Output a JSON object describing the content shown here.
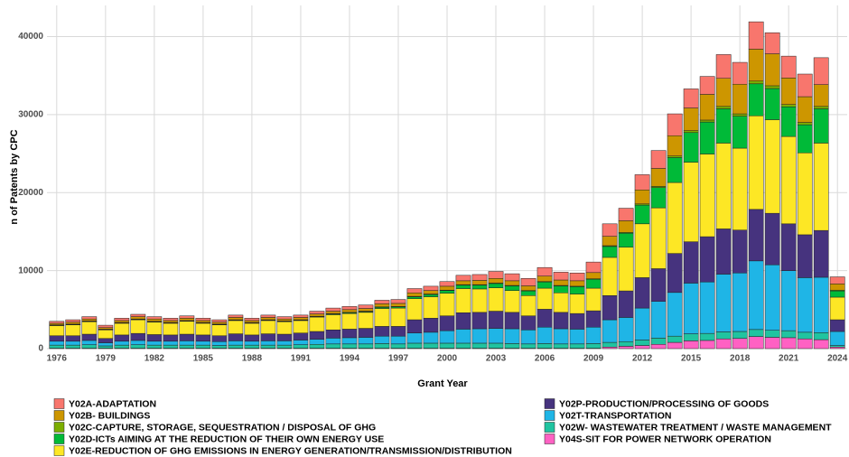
{
  "chart_data": {
    "type": "stacked_bar",
    "xlabel": "Grant Year",
    "ylabel": "n of Patents by CPC",
    "x": [
      1976,
      1977,
      1978,
      1979,
      1980,
      1981,
      1982,
      1983,
      1984,
      1985,
      1986,
      1987,
      1988,
      1989,
      1990,
      1991,
      1992,
      1993,
      1994,
      1995,
      1996,
      1997,
      1998,
      1999,
      2000,
      2001,
      2002,
      2003,
      2004,
      2005,
      2006,
      2007,
      2008,
      2009,
      2010,
      2011,
      2012,
      2013,
      2014,
      2015,
      2016,
      2017,
      2018,
      2019,
      2020,
      2021,
      2022,
      2023,
      2024
    ],
    "xlim": [
      1975.4,
      2024.6
    ],
    "xticks": [
      1976,
      1979,
      1982,
      1985,
      1988,
      1991,
      1994,
      1997,
      2000,
      2003,
      2006,
      2009,
      2012,
      2015,
      2018,
      2021,
      2024
    ],
    "ylim": [
      0,
      44000
    ],
    "yticks": [
      0,
      10000,
      20000,
      30000,
      40000
    ],
    "grid": true,
    "legend": "bottom",
    "series": [
      {
        "name": "Y02A-ADAPTATION",
        "color": "#F8766D",
        "values": [
          250,
          300,
          300,
          300,
          300,
          300,
          300,
          300,
          300,
          300,
          300,
          300,
          300,
          300,
          300,
          300,
          350,
          400,
          400,
          450,
          450,
          500,
          550,
          550,
          600,
          700,
          750,
          900,
          900,
          950,
          1100,
          1000,
          1000,
          1350,
          1600,
          1600,
          1950,
          2300,
          2800,
          2450,
          2300,
          3050,
          2800,
          3500,
          2700,
          2800,
          2900,
          3450,
          900
        ]
      },
      {
        "name": "Y02B- BUILDINGS",
        "color": "#CD9600",
        "values": [
          200,
          250,
          250,
          200,
          250,
          300,
          300,
          250,
          300,
          250,
          250,
          300,
          250,
          300,
          250,
          300,
          300,
          300,
          350,
          350,
          400,
          400,
          450,
          450,
          500,
          500,
          550,
          600,
          600,
          600,
          700,
          700,
          700,
          800,
          1200,
          1500,
          1800,
          2300,
          2600,
          2900,
          3300,
          3600,
          3800,
          4100,
          4100,
          3400,
          3300,
          2800,
          800
        ]
      },
      {
        "name": "Y02C-CAPTURE, STORAGE, SEQUESTRATION / DISPOSAL OF GHG",
        "color": "#7CAE00",
        "values": [
          50,
          50,
          50,
          50,
          50,
          50,
          50,
          50,
          50,
          50,
          50,
          50,
          50,
          50,
          50,
          50,
          50,
          50,
          50,
          50,
          50,
          50,
          50,
          50,
          50,
          50,
          50,
          50,
          50,
          50,
          50,
          50,
          50,
          50,
          100,
          100,
          150,
          150,
          200,
          250,
          250,
          300,
          300,
          350,
          350,
          300,
          300,
          300,
          100
        ]
      },
      {
        "name": "Y02D-ICTs AIMING AT THE REDUCTION OF THEIR OWN ENERGY USE",
        "color": "#00BA38",
        "values": [
          50,
          50,
          50,
          50,
          50,
          50,
          50,
          50,
          50,
          50,
          50,
          50,
          50,
          50,
          50,
          50,
          50,
          100,
          100,
          100,
          150,
          150,
          250,
          300,
          350,
          450,
          500,
          550,
          600,
          600,
          800,
          900,
          950,
          1150,
          1400,
          1800,
          2400,
          2600,
          3200,
          3800,
          4100,
          4400,
          4100,
          4100,
          4000,
          3800,
          3600,
          4400,
          800
        ]
      },
      {
        "name": "Y02E-REDUCTION OF GHG EMISSIONS IN ENERGY GENERATION/TRANSMISSION/DISTRIBUTION",
        "color": "#FDE725",
        "values": [
          1300,
          1400,
          1600,
          1100,
          1500,
          1750,
          1600,
          1500,
          1650,
          1500,
          1400,
          1700,
          1500,
          1700,
          1600,
          1600,
          1850,
          1950,
          2000,
          2050,
          2300,
          2350,
          2700,
          2750,
          2900,
          3100,
          3000,
          3000,
          2800,
          2600,
          2700,
          2500,
          2500,
          2900,
          4900,
          5600,
          6900,
          7800,
          9100,
          10200,
          10600,
          11000,
          10500,
          12000,
          12000,
          11200,
          10500,
          11200,
          2900
        ]
      },
      {
        "name": "Y02P-PRODUCTION/PROCESSING OF GOODS",
        "color": "#46337E",
        "values": [
          700,
          700,
          800,
          550,
          800,
          900,
          850,
          800,
          850,
          800,
          750,
          900,
          800,
          900,
          850,
          900,
          1000,
          1050,
          1100,
          1150,
          1250,
          1250,
          1700,
          1800,
          1900,
          2100,
          2100,
          2200,
          2100,
          1800,
          2300,
          2100,
          2000,
          2100,
          3100,
          3400,
          3900,
          4200,
          5000,
          5300,
          5800,
          5800,
          5500,
          6600,
          6600,
          6000,
          5500,
          6000,
          1500
        ]
      },
      {
        "name": "Y02T-TRANSPORTATION",
        "color": "#1FB5E6",
        "values": [
          500,
          500,
          550,
          400,
          500,
          550,
          500,
          500,
          550,
          500,
          500,
          550,
          500,
          550,
          550,
          600,
          650,
          750,
          800,
          850,
          950,
          1000,
          1300,
          1400,
          1600,
          1800,
          1850,
          1900,
          1900,
          1800,
          2100,
          1950,
          1900,
          2100,
          2900,
          3100,
          4100,
          4700,
          5600,
          6500,
          6600,
          7400,
          7500,
          8800,
          8400,
          7700,
          7000,
          7100,
          1800
        ]
      },
      {
        "name": "Y02W- WASTEWATER TREATMENT / WASTE MANAGEMENT",
        "color": "#20C4A0",
        "values": [
          400,
          400,
          450,
          300,
          400,
          450,
          400,
          400,
          400,
          400,
          350,
          400,
          400,
          400,
          400,
          450,
          500,
          550,
          550,
          550,
          600,
          550,
          650,
          650,
          650,
          650,
          650,
          650,
          600,
          550,
          600,
          550,
          550,
          600,
          600,
          600,
          700,
          800,
          800,
          900,
          900,
          900,
          900,
          900,
          900,
          900,
          850,
          900,
          200
        ]
      },
      {
        "name": "Y04S-SIT FOR POWER NETWORK OPERATION",
        "color": "#FF61C3",
        "values": [
          50,
          50,
          50,
          50,
          50,
          50,
          50,
          50,
          50,
          50,
          50,
          50,
          50,
          50,
          50,
          50,
          50,
          50,
          50,
          50,
          50,
          50,
          50,
          50,
          50,
          50,
          50,
          50,
          50,
          50,
          50,
          50,
          50,
          50,
          200,
          300,
          400,
          550,
          800,
          1000,
          1050,
          1250,
          1300,
          1550,
          1450,
          1400,
          1250,
          1150,
          200
        ]
      }
    ]
  }
}
